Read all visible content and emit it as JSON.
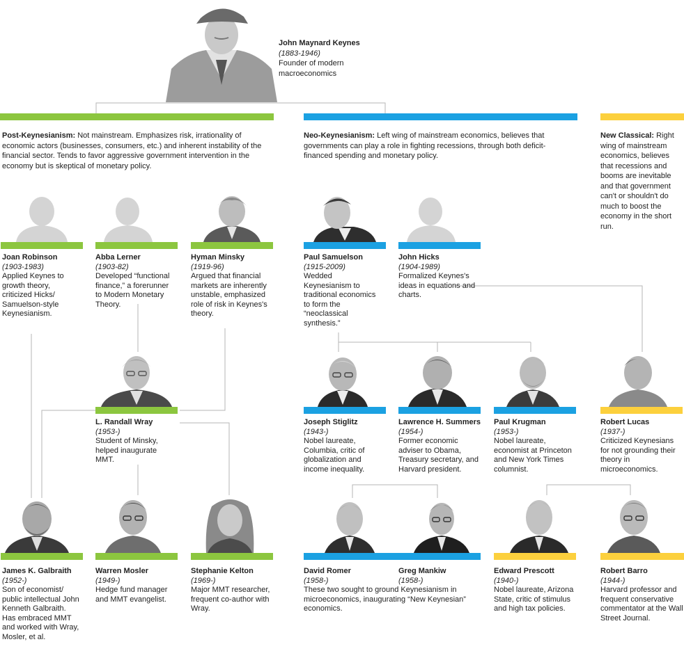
{
  "root": {
    "name": "John Maynard Keynes",
    "years": "(1883-1946)",
    "description": "Founder of modern macroeconomics"
  },
  "schools": {
    "post_keynesian": {
      "title": "Post-Keynesianism:",
      "text": "Not mainstream. Emphasizes risk, irrationality of economic actors (businesses, consumers, etc.) and inherent instability of the financial sector. Tends to favor aggressive government intervention in the economy but is skeptical of monetary policy.",
      "color": "#8cc63f"
    },
    "neo_keynesian": {
      "title": "Neo-Keynesianism:",
      "text": "Left wing of mainstream economics, believes that governments can play a role in fighting recessions, through both deficit-financed spending and monetary policy.",
      "color": "#1ba1e2"
    },
    "new_classical": {
      "title": "New Classical:",
      "text": "Right wing of mainstream economics, believes that recessions and booms are inevitable and that government can't or shouldn't do much to boost the economy in the short run.",
      "color": "#fcd03d"
    }
  },
  "people": {
    "robinson": {
      "name": "Joan Robinson",
      "years": "(1903-1983)",
      "desc": "Applied Keynes to growth theory, criticized Hicks/ Samuelson-style Keynesianism.",
      "photo": "silhouette"
    },
    "lerner": {
      "name": "Abba Lerner",
      "years": "(1903-82)",
      "desc": "Developed “functional finance,” a forerunner to Modern Monetary Theory.",
      "photo": "silhouette"
    },
    "minsky": {
      "name": "Hyman Minsky",
      "years": "(1919-96)",
      "desc": "Argued that financial markets are inherently unstable, emphasized role of risk in Keynes's theory.",
      "photo": "portrait"
    },
    "samuelson": {
      "name": "Paul Samuelson",
      "years": "(1915-2009)",
      "desc": "Wedded Keynesianism to traditional economics to form the “neoclassical synthesis.”",
      "photo": "portrait"
    },
    "hicks": {
      "name": "John Hicks",
      "years": "(1904-1989)",
      "desc": "Formalized Keynes's ideas in equations and charts.",
      "photo": "silhouette"
    },
    "wray": {
      "name": "L. Randall Wray",
      "years": "(1953-)",
      "desc": "Student of Minsky, helped inaugurate MMT.",
      "photo": "portrait"
    },
    "stiglitz": {
      "name": "Joseph Stiglitz",
      "years": "(1943-)",
      "desc": "Nobel laureate, Columbia, critic of globalization and income inequality.",
      "photo": "portrait"
    },
    "summers": {
      "name": "Lawrence H. Summers",
      "years": "(1954-)",
      "desc": "Former economic adviser to Obama, Treasury secretary, and Harvard president.",
      "photo": "portrait"
    },
    "krugman": {
      "name": "Paul Krugman",
      "years": "(1953-)",
      "desc": "Nobel laureate, economist at Princeton and New York Times columnist.",
      "photo": "portrait"
    },
    "lucas": {
      "name": "Robert Lucas",
      "years": "(1937-)",
      "desc": "Criticized Keynesians for not grounding their theory in microeconomics.",
      "photo": "portrait"
    },
    "galbraith": {
      "name": "James K. Galbraith",
      "years": "(1952-)",
      "desc": "Son of economist/ public intellectual John Kenneth Galbraith. Has embraced MMT and worked with Wray, Mosler, et al.",
      "photo": "portrait"
    },
    "mosler": {
      "name": "Warren Mosler",
      "years": "(1949-)",
      "desc": "Hedge fund manager and MMT evangelist.",
      "photo": "portrait"
    },
    "kelton": {
      "name": "Stephanie Kelton",
      "years": "(1969-)",
      "desc": "Major MMT researcher, frequent co-author with Wray.",
      "photo": "portrait"
    },
    "romer": {
      "name": "David Romer",
      "years": "(1958-)",
      "desc": "These two sought to ground Keynesianism in microeconomics, inaugurating “New Keynesian” economics.",
      "photo": "portrait"
    },
    "mankiw": {
      "name": "Greg Mankiw",
      "years": "(1958-)",
      "photo": "portrait"
    },
    "prescott": {
      "name": "Edward Prescott",
      "years": "(1940-)",
      "desc": "Nobel laureate, Arizona State, critic of stimulus and high tax policies.",
      "photo": "portrait"
    },
    "barro": {
      "name": "Robert Barro",
      "years": "(1944-)",
      "desc": "Harvard professor and frequent conservative commentator at the Wall Street Journal.",
      "photo": "portrait"
    }
  }
}
